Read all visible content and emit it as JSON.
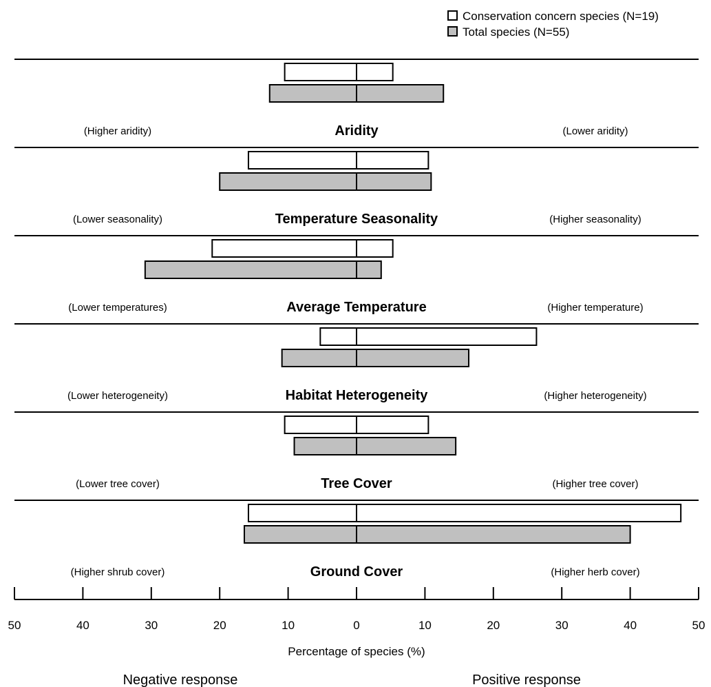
{
  "chart_data": {
    "type": "bar",
    "orientation": "horizontal-diverging",
    "legend": {
      "placement": "top-right",
      "entries": [
        {
          "label": "Conservation concern species (N=19)",
          "fill": "#ffffff"
        },
        {
          "label": "Total species (N=55)",
          "fill": "#c0c0c0"
        }
      ]
    },
    "xlabel": "Percentage of species (%)",
    "xlim": [
      -50,
      50
    ],
    "ticks": [
      -50,
      -40,
      -30,
      -20,
      -10,
      0,
      10,
      20,
      30,
      40,
      50
    ],
    "tick_labels": [
      "50",
      "40",
      "30",
      "20",
      "10",
      "0",
      "10",
      "20",
      "30",
      "40",
      "50"
    ],
    "negative_label": "Negative response",
    "positive_label": "Positive response",
    "panels": [
      {
        "title": "Aridity",
        "left_label": "(Higher aridity)",
        "right_label": "(Lower aridity)",
        "concern": {
          "neg": 10.5,
          "pos": 5.3
        },
        "total": {
          "neg": 12.7,
          "pos": 12.7
        }
      },
      {
        "title": "Temperature Seasonality",
        "left_label": "(Lower seasonality)",
        "right_label": "(Higher seasonality)",
        "concern": {
          "neg": 15.8,
          "pos": 10.5
        },
        "total": {
          "neg": 20.0,
          "pos": 10.9
        }
      },
      {
        "title": "Average Temperature",
        "left_label": "(Lower temperatures)",
        "right_label": "(Higher temperature)",
        "concern": {
          "neg": 21.1,
          "pos": 5.3
        },
        "total": {
          "neg": 30.9,
          "pos": 3.6
        }
      },
      {
        "title": "Habitat Heterogeneity",
        "left_label": "(Lower heterogeneity)",
        "right_label": "(Higher heterogeneity)",
        "concern": {
          "neg": 5.3,
          "pos": 26.3
        },
        "total": {
          "neg": 10.9,
          "pos": 16.4
        }
      },
      {
        "title": "Tree Cover",
        "left_label": "(Lower tree cover)",
        "right_label": "(Higher tree cover)",
        "concern": {
          "neg": 10.5,
          "pos": 10.5
        },
        "total": {
          "neg": 9.1,
          "pos": 14.5
        }
      },
      {
        "title": "Ground Cover",
        "left_label": "(Higher shrub cover)",
        "right_label": "(Higher herb cover)",
        "concern": {
          "neg": 15.8,
          "pos": 47.4
        },
        "total": {
          "neg": 16.4,
          "pos": 40.0
        }
      }
    ]
  }
}
